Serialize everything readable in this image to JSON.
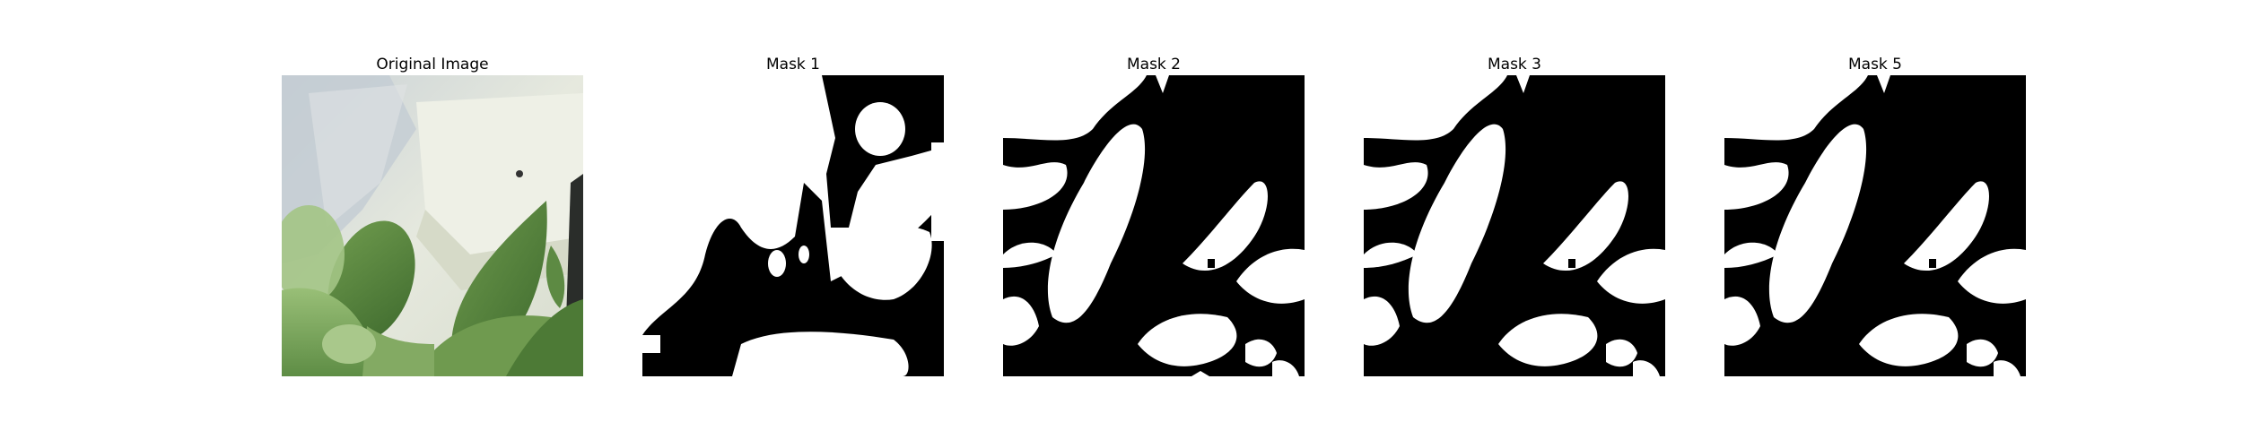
{
  "panels": [
    {
      "id": "original",
      "title": "Original Image"
    },
    {
      "id": "mask1",
      "title": "Mask 1"
    },
    {
      "id": "mask2",
      "title": "Mask 2"
    },
    {
      "id": "mask3",
      "title": "Mask 3"
    },
    {
      "id": "mask5",
      "title": "Mask 5"
    }
  ],
  "colors": {
    "mask_foreground": "#ffffff",
    "mask_background": "#000000",
    "leaf_dark": "#4f7a3b",
    "leaf_light": "#8fb86a",
    "wall": "#e8ebe2"
  }
}
